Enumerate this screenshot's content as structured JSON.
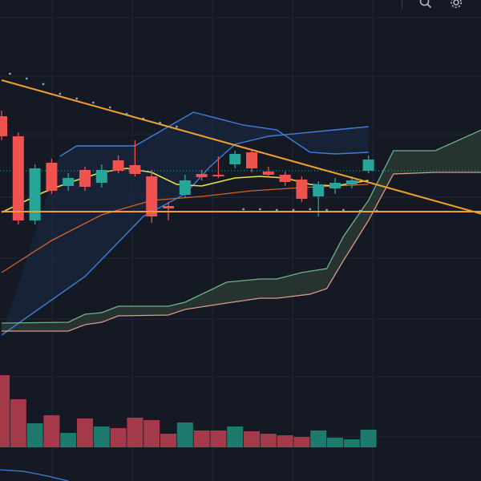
{
  "toolbar": {
    "icons": [
      "search-icon",
      "settings-icon"
    ]
  },
  "colors": {
    "background": "#151924",
    "grid": "#232837",
    "bull": "#26a69a",
    "bear": "#ef5350",
    "bull_volume": "#1f7a6e",
    "bear_volume": "#a53b4a",
    "bollinger": "#3f7fd9",
    "bollinger_fill": "#1a2a47",
    "trendline": "#f0a030",
    "ma_fast": "#e8e24a",
    "ma_slow": "#d4622c",
    "cloud_a": "#6fb489",
    "cloud_b": "#d99a8a",
    "sar": "#7ba1e0",
    "price_line": "#26a69a"
  },
  "chart_data": {
    "type": "candlestick",
    "title": "",
    "xlabel": "",
    "ylabel": "",
    "ylim": [
      0,
      500
    ],
    "x_range": [
      0,
      30
    ],
    "grid": true,
    "candles": [
      {
        "x": 0.0,
        "o": 355,
        "c": 330,
        "h": 362,
        "l": 325
      },
      {
        "x": 1.0,
        "o": 330,
        "c": 225,
        "h": 335,
        "l": 220
      },
      {
        "x": 2.0,
        "o": 225,
        "c": 290,
        "h": 295,
        "l": 220
      },
      {
        "x": 3.0,
        "o": 297,
        "c": 262,
        "h": 302,
        "l": 258
      },
      {
        "x": 4.0,
        "o": 268,
        "c": 278,
        "h": 284,
        "l": 262
      },
      {
        "x": 5.0,
        "o": 288,
        "c": 267,
        "h": 292,
        "l": 262
      },
      {
        "x": 6.0,
        "o": 272,
        "c": 288,
        "h": 295,
        "l": 266
      },
      {
        "x": 7.0,
        "o": 300,
        "c": 287,
        "h": 306,
        "l": 284
      },
      {
        "x": 8.0,
        "o": 294,
        "c": 283,
        "h": 325,
        "l": 280
      },
      {
        "x": 9.0,
        "o": 280,
        "c": 230,
        "h": 288,
        "l": 222
      },
      {
        "x": 10.0,
        "o": 243,
        "c": 240,
        "h": 248,
        "l": 225
      },
      {
        "x": 11.0,
        "o": 257,
        "c": 275,
        "h": 282,
        "l": 253
      },
      {
        "x": 12.0,
        "o": 283,
        "c": 279,
        "h": 288,
        "l": 275
      },
      {
        "x": 13.0,
        "o": 282,
        "c": 280,
        "h": 305,
        "l": 278
      },
      {
        "x": 14.0,
        "o": 295,
        "c": 308,
        "h": 312,
        "l": 290
      },
      {
        "x": 15.0,
        "o": 310,
        "c": 290,
        "h": 314,
        "l": 285
      },
      {
        "x": 16.0,
        "o": 286,
        "c": 282,
        "h": 292,
        "l": 278
      },
      {
        "x": 17.0,
        "o": 282,
        "c": 273,
        "h": 286,
        "l": 268
      },
      {
        "x": 18.0,
        "o": 276,
        "c": 252,
        "h": 280,
        "l": 248
      },
      {
        "x": 19.0,
        "o": 255,
        "c": 270,
        "h": 274,
        "l": 230
      },
      {
        "x": 20.0,
        "o": 265,
        "c": 272,
        "h": 278,
        "l": 258
      },
      {
        "x": 21.0,
        "o": 270,
        "c": 275,
        "h": 280,
        "l": 265
      },
      {
        "x": 22.0,
        "o": 287,
        "c": 301,
        "h": 306,
        "l": 284
      }
    ],
    "bollinger_upper": [
      {
        "x": 3.5,
        "y": 305
      },
      {
        "x": 4.5,
        "y": 318
      },
      {
        "x": 8.0,
        "y": 318
      },
      {
        "x": 11.5,
        "y": 360
      },
      {
        "x": 14.5,
        "y": 344
      },
      {
        "x": 16.5,
        "y": 338
      },
      {
        "x": 18.5,
        "y": 310
      },
      {
        "x": 20.0,
        "y": 308
      },
      {
        "x": 22.0,
        "y": 310
      }
    ],
    "bollinger_lower": [
      {
        "x": 0,
        "y": 82
      },
      {
        "x": 5.0,
        "y": 155
      },
      {
        "x": 8.5,
        "y": 230
      },
      {
        "x": 11.0,
        "y": 258
      },
      {
        "x": 12.5,
        "y": 292
      },
      {
        "x": 14.0,
        "y": 320
      },
      {
        "x": 16.0,
        "y": 330
      },
      {
        "x": 18.5,
        "y": 335
      },
      {
        "x": 20.0,
        "y": 338
      },
      {
        "x": 22.0,
        "y": 342
      }
    ],
    "ma_fast": [
      {
        "x": 0,
        "y": 235
      },
      {
        "x": 2.5,
        "y": 260
      },
      {
        "x": 4.0,
        "y": 272
      },
      {
        "x": 6.0,
        "y": 285
      },
      {
        "x": 7.5,
        "y": 290
      },
      {
        "x": 9.0,
        "y": 285
      },
      {
        "x": 10.5,
        "y": 270
      },
      {
        "x": 12.0,
        "y": 268
      },
      {
        "x": 14.0,
        "y": 278
      },
      {
        "x": 15.5,
        "y": 280
      },
      {
        "x": 17.0,
        "y": 278
      },
      {
        "x": 18.5,
        "y": 270
      },
      {
        "x": 20.0,
        "y": 268
      },
      {
        "x": 22.0,
        "y": 275
      }
    ],
    "ma_slow": [
      {
        "x": 0,
        "y": 160
      },
      {
        "x": 3.0,
        "y": 200
      },
      {
        "x": 6.0,
        "y": 232
      },
      {
        "x": 9.0,
        "y": 250
      },
      {
        "x": 12.0,
        "y": 255
      },
      {
        "x": 15.0,
        "y": 262
      },
      {
        "x": 18.0,
        "y": 266
      },
      {
        "x": 22.0,
        "y": 270
      }
    ],
    "cloud_line_a": [
      {
        "x": 0,
        "y": 97
      },
      {
        "x": 4.0,
        "y": 98
      },
      {
        "x": 5.0,
        "y": 108
      },
      {
        "x": 6.0,
        "y": 110
      },
      {
        "x": 7.0,
        "y": 118
      },
      {
        "x": 10.0,
        "y": 118
      },
      {
        "x": 11.0,
        "y": 123
      },
      {
        "x": 13.5,
        "y": 148
      },
      {
        "x": 15.5,
        "y": 152
      },
      {
        "x": 16.5,
        "y": 152
      },
      {
        "x": 18.0,
        "y": 160
      },
      {
        "x": 19.5,
        "y": 165
      },
      {
        "x": 20.5,
        "y": 205
      },
      {
        "x": 22.0,
        "y": 250
      },
      {
        "x": 23.5,
        "y": 312
      },
      {
        "x": 26.0,
        "y": 312
      },
      {
        "x": 29.0,
        "y": 340
      }
    ],
    "cloud_line_b": [
      {
        "x": 0,
        "y": 87
      },
      {
        "x": 4.0,
        "y": 87
      },
      {
        "x": 5.0,
        "y": 95
      },
      {
        "x": 6.0,
        "y": 98
      },
      {
        "x": 7.0,
        "y": 106
      },
      {
        "x": 10.0,
        "y": 107
      },
      {
        "x": 11.0,
        "y": 114
      },
      {
        "x": 13.5,
        "y": 122
      },
      {
        "x": 15.5,
        "y": 128
      },
      {
        "x": 16.5,
        "y": 128
      },
      {
        "x": 18.5,
        "y": 133
      },
      {
        "x": 19.5,
        "y": 140
      },
      {
        "x": 20.5,
        "y": 175
      },
      {
        "x": 22.0,
        "y": 225
      },
      {
        "x": 23.5,
        "y": 283
      },
      {
        "x": 26.0,
        "y": 285
      },
      {
        "x": 29.0,
        "y": 285
      }
    ],
    "trendline_descending": {
      "x1": 0,
      "y1": 400,
      "x2": 29.0,
      "y2": 232
    },
    "trendline_horizontal": {
      "x1": 0,
      "y1": 236,
      "x2": 29.0,
      "y2": 236
    },
    "sar_dots": [
      {
        "x": 0.5,
        "y": 408
      },
      {
        "x": 1.5,
        "y": 402
      },
      {
        "x": 2.5,
        "y": 395
      },
      {
        "x": 3.5,
        "y": 383
      },
      {
        "x": 4.5,
        "y": 377
      },
      {
        "x": 5.5,
        "y": 372
      },
      {
        "x": 6.5,
        "y": 366
      },
      {
        "x": 7.5,
        "y": 358
      },
      {
        "x": 8.5,
        "y": 352
      },
      {
        "x": 9.5,
        "y": 347
      },
      {
        "x": 10.5,
        "y": 342
      },
      {
        "x": 14.5,
        "y": 239
      },
      {
        "x": 15.5,
        "y": 239
      },
      {
        "x": 16.5,
        "y": 238
      },
      {
        "x": 17.5,
        "y": 238
      },
      {
        "x": 18.5,
        "y": 239
      },
      {
        "x": 19.5,
        "y": 238
      },
      {
        "x": 20.5,
        "y": 238
      },
      {
        "x": 21.5,
        "y": 237
      },
      {
        "x": 22.5,
        "y": 237
      }
    ],
    "price_line_y": 287,
    "volume": [
      {
        "x": 0.0,
        "v": 90,
        "dir": "bear"
      },
      {
        "x": 1.0,
        "v": 60,
        "dir": "bear"
      },
      {
        "x": 2.0,
        "v": 30,
        "dir": "bull"
      },
      {
        "x": 3.0,
        "v": 40,
        "dir": "bear"
      },
      {
        "x": 4.0,
        "v": 18,
        "dir": "bull"
      },
      {
        "x": 5.0,
        "v": 36,
        "dir": "bear"
      },
      {
        "x": 6.0,
        "v": 26,
        "dir": "bull"
      },
      {
        "x": 7.0,
        "v": 24,
        "dir": "bear"
      },
      {
        "x": 8.0,
        "v": 37,
        "dir": "bear"
      },
      {
        "x": 9.0,
        "v": 34,
        "dir": "bear"
      },
      {
        "x": 10.0,
        "v": 17,
        "dir": "bear"
      },
      {
        "x": 11.0,
        "v": 31,
        "dir": "bull"
      },
      {
        "x": 12.0,
        "v": 21,
        "dir": "bear"
      },
      {
        "x": 13.0,
        "v": 21,
        "dir": "bear"
      },
      {
        "x": 14.0,
        "v": 26,
        "dir": "bull"
      },
      {
        "x": 15.0,
        "v": 20,
        "dir": "bear"
      },
      {
        "x": 16.0,
        "v": 17,
        "dir": "bear"
      },
      {
        "x": 17.0,
        "v": 15,
        "dir": "bear"
      },
      {
        "x": 18.0,
        "v": 13,
        "dir": "bear"
      },
      {
        "x": 19.0,
        "v": 21,
        "dir": "bull"
      },
      {
        "x": 20.0,
        "v": 12,
        "dir": "bull"
      },
      {
        "x": 21.0,
        "v": 10,
        "dir": "bull"
      },
      {
        "x": 22.0,
        "v": 22,
        "dir": "bull"
      }
    ],
    "volume_ylim": [
      0,
      100
    ]
  }
}
